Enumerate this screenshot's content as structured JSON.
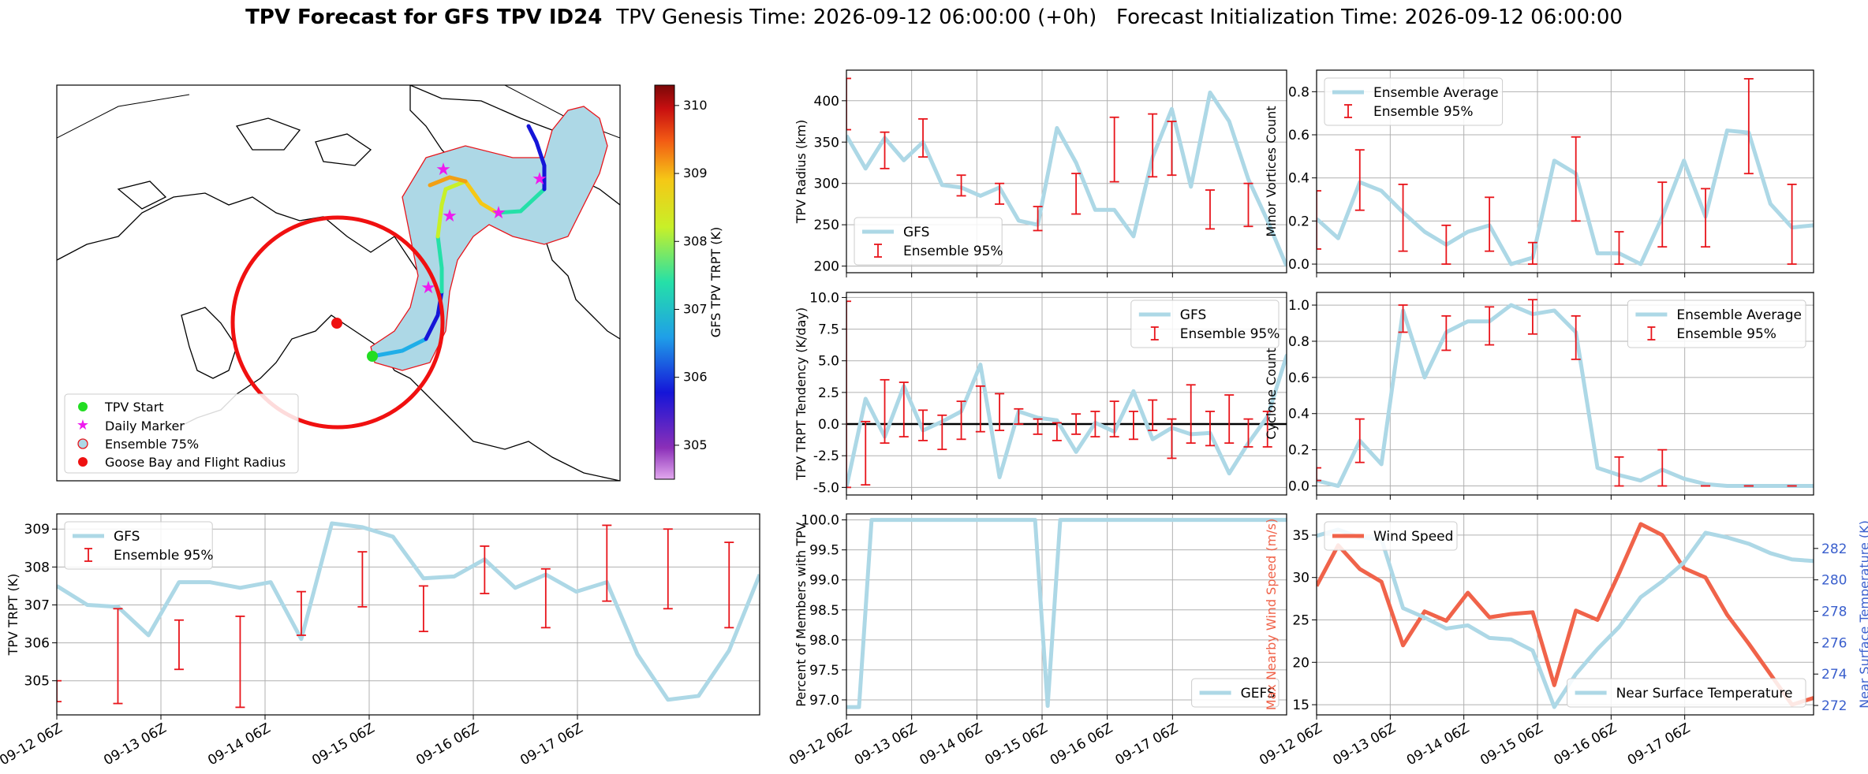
{
  "figure": {
    "title_bold": "TPV Forecast for GFS TPV ID24",
    "title_rest": "TPV Genesis Time: 2026-09-12 06:00:00 (+0h)   Forecast Initialization Time: 2026-09-12 06:00:00"
  },
  "colors": {
    "gfs_line": "#add8e6",
    "ensemble_bar": "#e8151b",
    "wind": "#f0634a",
    "temp_label": "#3a5fcd",
    "grid": "#b0b0b0"
  },
  "map": {
    "legend": [
      "TPV Start",
      "Daily Marker",
      "Ensemble 75%",
      "Goose Bay and Flight Radius"
    ],
    "colorbar": {
      "label": "GFS TPV TRPT (K)",
      "ticks": [
        305,
        306,
        307,
        308,
        309,
        310
      ],
      "range": [
        304.5,
        310.3
      ]
    }
  },
  "time_ticks": [
    "09-12 06Z",
    "09-13 06Z",
    "09-14 06Z",
    "09-15 06Z",
    "09-16 06Z",
    "09-17 06Z"
  ],
  "chart_data": [
    {
      "id": "radius",
      "type": "line",
      "ylabel": "TPV Radius (km)",
      "ylim": [
        192,
        437
      ],
      "yticks": [
        200,
        250,
        300,
        350,
        400
      ],
      "legend": [
        "GFS",
        "Ensemble 95%"
      ],
      "legend_loc": "lower-left",
      "series": [
        {
          "name": "GFS",
          "values": [
            358,
            318,
            355,
            328,
            350,
            298,
            295,
            285,
            295,
            255,
            250,
            367,
            325,
            268,
            268,
            236,
            332,
            390,
            296,
            410,
            375,
            305,
            255,
            200
          ]
        }
      ],
      "errorbars": [
        [
          0,
          365,
          427
        ],
        [
          2,
          318,
          362
        ],
        [
          4,
          332,
          378
        ],
        [
          6,
          285,
          310
        ],
        [
          8,
          275,
          300
        ],
        [
          10,
          243,
          272
        ],
        [
          12,
          263,
          312
        ],
        [
          14,
          302,
          380
        ],
        [
          16,
          308,
          384
        ],
        [
          17,
          310,
          375
        ],
        [
          19,
          245,
          292
        ],
        [
          21,
          248,
          300
        ]
      ]
    },
    {
      "id": "minor",
      "type": "line",
      "ylabel": "Minor Vortices Count",
      "ylim": [
        -0.04,
        0.9
      ],
      "yticks": [
        0.0,
        0.2,
        0.4,
        0.6,
        0.8
      ],
      "yfmt": 1,
      "legend": [
        "Ensemble Average",
        "Ensemble 95%"
      ],
      "legend_loc": "upper-left",
      "series": [
        {
          "name": "Ensemble Average",
          "values": [
            0.21,
            0.12,
            0.38,
            0.34,
            0.24,
            0.15,
            0.09,
            0.15,
            0.18,
            0.0,
            0.03,
            0.48,
            0.42,
            0.05,
            0.05,
            0.0,
            0.22,
            0.48,
            0.22,
            0.62,
            0.61,
            0.28,
            0.17,
            0.18
          ]
        }
      ],
      "errorbars": [
        [
          0,
          0.07,
          0.34
        ],
        [
          2,
          0.25,
          0.53
        ],
        [
          4,
          0.06,
          0.37
        ],
        [
          6,
          0.0,
          0.18
        ],
        [
          8,
          0.06,
          0.31
        ],
        [
          10,
          0.0,
          0.1
        ],
        [
          12,
          0.2,
          0.59
        ],
        [
          14,
          0.0,
          0.15
        ],
        [
          16,
          0.08,
          0.38
        ],
        [
          18,
          0.08,
          0.35
        ],
        [
          20,
          0.42,
          0.86
        ],
        [
          22,
          0.0,
          0.37
        ]
      ]
    },
    {
      "id": "tendency",
      "type": "line",
      "ylabel": "TPV TRPT Tendency (K/day)",
      "ylim": [
        -5.6,
        10.4
      ],
      "yticks": [
        -5.0,
        -2.5,
        0.0,
        2.5,
        5.0,
        7.5,
        10.0
      ],
      "yfmt": 1,
      "legend": [
        "GFS",
        "Ensemble 95%"
      ],
      "legend_loc": "upper-right",
      "series": [
        {
          "name": "GFS",
          "values": [
            -5.0,
            2.0,
            -1.0,
            3.0,
            -0.5,
            0.2,
            1.0,
            4.7,
            -4.2,
            1.0,
            0.5,
            0.3,
            -2.2,
            0.1,
            -0.6,
            2.6,
            -1.2,
            -0.3,
            -0.8,
            -0.7,
            -3.9,
            -1.5,
            0.6,
            5.4,
            1.0
          ]
        }
      ],
      "errorbars": [
        [
          0,
          -5.0,
          9.7
        ],
        [
          1,
          -4.8,
          0.2
        ],
        [
          2,
          -1.5,
          3.5
        ],
        [
          3,
          -1.0,
          3.3
        ],
        [
          4,
          -1.3,
          1.1
        ],
        [
          5,
          -2.0,
          0.7
        ],
        [
          6,
          -1.2,
          1.8
        ],
        [
          7,
          -0.6,
          3.0
        ],
        [
          8,
          -0.5,
          2.4
        ],
        [
          9,
          0.0,
          1.2
        ],
        [
          10,
          -0.8,
          0.4
        ],
        [
          11,
          -1.3,
          0.1
        ],
        [
          12,
          -0.8,
          0.8
        ],
        [
          13,
          -1.0,
          1.0
        ],
        [
          14,
          -1.0,
          1.8
        ],
        [
          15,
          -1.2,
          1.0
        ],
        [
          16,
          -0.5,
          1.9
        ],
        [
          17,
          -2.7,
          0.4
        ],
        [
          18,
          -1.5,
          3.1
        ],
        [
          19,
          -1.7,
          1.0
        ],
        [
          20,
          -1.5,
          2.3
        ],
        [
          21,
          -1.8,
          0.4
        ],
        [
          22,
          -1.8,
          1.0
        ]
      ],
      "zero_line": true
    },
    {
      "id": "cyclone",
      "type": "line",
      "ylabel": "Cyclone Count",
      "ylim": [
        -0.05,
        1.07
      ],
      "yticks": [
        0.0,
        0.2,
        0.4,
        0.6,
        0.8,
        1.0
      ],
      "yfmt": 1,
      "legend": [
        "Ensemble Average",
        "Ensemble 95%"
      ],
      "legend_loc": "upper-right",
      "series": [
        {
          "name": "Ensemble Average",
          "values": [
            0.03,
            0.0,
            0.25,
            0.12,
            0.97,
            0.6,
            0.85,
            0.91,
            0.91,
            1.0,
            0.95,
            0.97,
            0.85,
            0.1,
            0.06,
            0.03,
            0.09,
            0.04,
            0.01,
            0.0,
            0.0,
            0.0,
            0.0,
            0.0
          ]
        }
      ],
      "errorbars": [
        [
          0,
          0.03,
          0.1
        ],
        [
          2,
          0.13,
          0.37
        ],
        [
          4,
          0.85,
          1.0
        ],
        [
          6,
          0.75,
          0.94
        ],
        [
          8,
          0.78,
          0.99
        ],
        [
          10,
          0.84,
          1.03
        ],
        [
          12,
          0.7,
          0.94
        ],
        [
          14,
          0.0,
          0.16
        ],
        [
          16,
          0.0,
          0.2
        ],
        [
          18,
          0.0,
          0.0
        ],
        [
          20,
          0.0,
          0.0
        ],
        [
          22,
          0.0,
          0.0
        ]
      ]
    },
    {
      "id": "trpt",
      "type": "line",
      "ylabel": "TPV TRPT (K)",
      "ylim": [
        304.1,
        309.4
      ],
      "yticks": [
        305,
        306,
        307,
        308,
        309
      ],
      "legend": [
        "GFS",
        "Ensemble 95%"
      ],
      "legend_loc": "upper-left",
      "series": [
        {
          "name": "GFS",
          "values": [
            307.5,
            307.0,
            306.95,
            306.2,
            307.6,
            307.6,
            307.45,
            307.6,
            306.1,
            309.15,
            309.05,
            308.8,
            307.7,
            307.75,
            308.2,
            307.45,
            307.8,
            307.35,
            307.6,
            305.7,
            304.5,
            304.6,
            305.8,
            307.8
          ]
        }
      ],
      "errorbars": [
        [
          0,
          304.45,
          305.0
        ],
        [
          2,
          304.4,
          306.9
        ],
        [
          4,
          305.3,
          306.6
        ],
        [
          6,
          304.3,
          306.7
        ],
        [
          8,
          306.2,
          307.35
        ],
        [
          10,
          306.95,
          308.4
        ],
        [
          12,
          306.3,
          307.5
        ],
        [
          14,
          307.3,
          308.55
        ],
        [
          16,
          306.4,
          307.95
        ],
        [
          18,
          307.1,
          309.1
        ],
        [
          20,
          306.9,
          309.0
        ],
        [
          22,
          306.4,
          308.65
        ]
      ]
    },
    {
      "id": "members",
      "type": "line",
      "ylabel": "Percent of Members with TPV",
      "ylim": [
        96.75,
        100.1
      ],
      "yticks": [
        97.0,
        97.5,
        98.0,
        98.5,
        99.0,
        99.5,
        100.0
      ],
      "yfmt": 1,
      "legend": [
        "GEFS"
      ],
      "legend_loc": "lower-right",
      "series": [
        {
          "name": "GEFS",
          "values": [
            96.88,
            96.88,
            100,
            100,
            100,
            100,
            100,
            100,
            100,
            100,
            100,
            100,
            100,
            100,
            100,
            100,
            96.9,
            100,
            100,
            100,
            100,
            100,
            100,
            100,
            100,
            100,
            100,
            100,
            100,
            100,
            100,
            100,
            100,
            100,
            100,
            100
          ]
        }
      ],
      "x_count": 36
    },
    {
      "id": "wind_temp",
      "type": "line",
      "ylabel": "Max Nearby Wind Speed (m/s)",
      "ylim": [
        13.8,
        37.5
      ],
      "yticks": [
        15,
        20,
        25,
        30,
        35
      ],
      "legend": [
        "Wind Speed"
      ],
      "legend_loc": "upper-left",
      "series": [
        {
          "name": "Wind Speed",
          "values": [
            29,
            33.8,
            31,
            29.5,
            22,
            26,
            24.9,
            28.2,
            25.3,
            25.7,
            25.9,
            17.3,
            26.1,
            25,
            30.5,
            36.3,
            35,
            31.1,
            30,
            25.6,
            22.2,
            18.6,
            15,
            15.8
          ]
        },
        {
          "name": "Near Surface Temperature",
          "values": [
            282.8,
            283.2,
            282.7,
            282.6,
            278.2,
            277.6,
            276.9,
            277.1,
            276.3,
            276.2,
            275.5,
            271.9,
            274,
            275.6,
            277,
            278.9,
            279.9,
            281.1,
            283,
            282.7,
            282.3,
            281.7,
            281.3,
            281.2
          ],
          "axis": "right"
        }
      ],
      "y2label": "Near Surface Temperature (K)",
      "y2lim": [
        271.4,
        284.2
      ],
      "y2ticks": [
        272,
        274,
        276,
        278,
        280,
        282
      ],
      "legend2": [
        "Near Surface Temperature"
      ],
      "legend2_loc": "lower-right"
    }
  ]
}
